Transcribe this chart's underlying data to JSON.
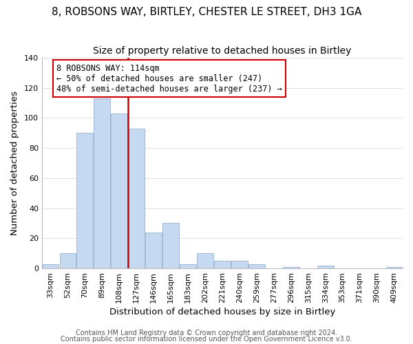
{
  "title": "8, ROBSONS WAY, BIRTLEY, CHESTER LE STREET, DH3 1GA",
  "subtitle": "Size of property relative to detached houses in Birtley",
  "xlabel": "Distribution of detached houses by size in Birtley",
  "ylabel": "Number of detached properties",
  "categories": [
    "33sqm",
    "52sqm",
    "70sqm",
    "89sqm",
    "108sqm",
    "127sqm",
    "146sqm",
    "165sqm",
    "183sqm",
    "202sqm",
    "221sqm",
    "240sqm",
    "259sqm",
    "277sqm",
    "296sqm",
    "315sqm",
    "334sqm",
    "353sqm",
    "371sqm",
    "390sqm",
    "409sqm"
  ],
  "values": [
    3,
    10,
    90,
    113,
    103,
    93,
    24,
    30,
    3,
    10,
    5,
    5,
    3,
    0,
    1,
    0,
    2,
    0,
    0,
    0,
    1
  ],
  "bar_color": "#c5d9f1",
  "bar_edge_color": "#a0b8d8",
  "vline_x": 4.5,
  "vline_color": "#cc0000",
  "annotation_text": "8 ROBSONS WAY: 114sqm\n← 50% of detached houses are smaller (247)\n48% of semi-detached houses are larger (237) →",
  "annotation_box_color": "#ffffff",
  "annotation_box_edge": "#cc0000",
  "ylim": [
    0,
    140
  ],
  "yticks": [
    0,
    20,
    40,
    60,
    80,
    100,
    120,
    140
  ],
  "footer1": "Contains HM Land Registry data © Crown copyright and database right 2024.",
  "footer2": "Contains public sector information licensed under the Open Government Licence v3.0.",
  "title_fontsize": 11,
  "subtitle_fontsize": 10,
  "axis_label_fontsize": 9.5,
  "tick_fontsize": 8,
  "annotation_fontsize": 8.5,
  "footer_fontsize": 7,
  "background_color": "#ffffff"
}
